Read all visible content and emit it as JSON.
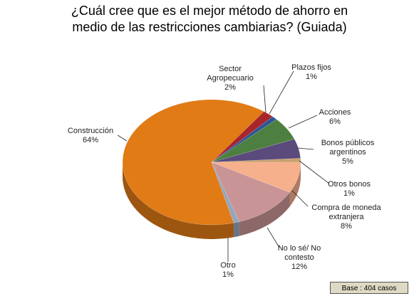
{
  "chart_data": {
    "type": "pie",
    "title": "¿Cuál cree que es el mejor método de ahorro en medio de las restricciones cambiarias? (Guiada)",
    "categories": [
      "Construcción",
      "Sector Agropecuario",
      "Plazos fijos",
      "Acciones",
      "Bonos públicos argentinos",
      "Otros bonos",
      "Compra de moneda extranjera",
      "No lo sé/ No contesto",
      "Otro"
    ],
    "values": [
      64,
      2,
      1,
      6,
      5,
      1,
      8,
      12,
      1
    ],
    "value_labels": [
      "64%",
      "2%",
      "1%",
      "6%",
      "5%",
      "1%",
      "8%",
      "12%",
      "1%"
    ],
    "colors": [
      "#e07b16",
      "#a8262a",
      "#2f5597",
      "#4d8040",
      "#5b4a7c",
      "#c9a06e",
      "#f6b08c",
      "#c99496",
      "#93a6bb"
    ],
    "note": "Base : 404 casos"
  }
}
